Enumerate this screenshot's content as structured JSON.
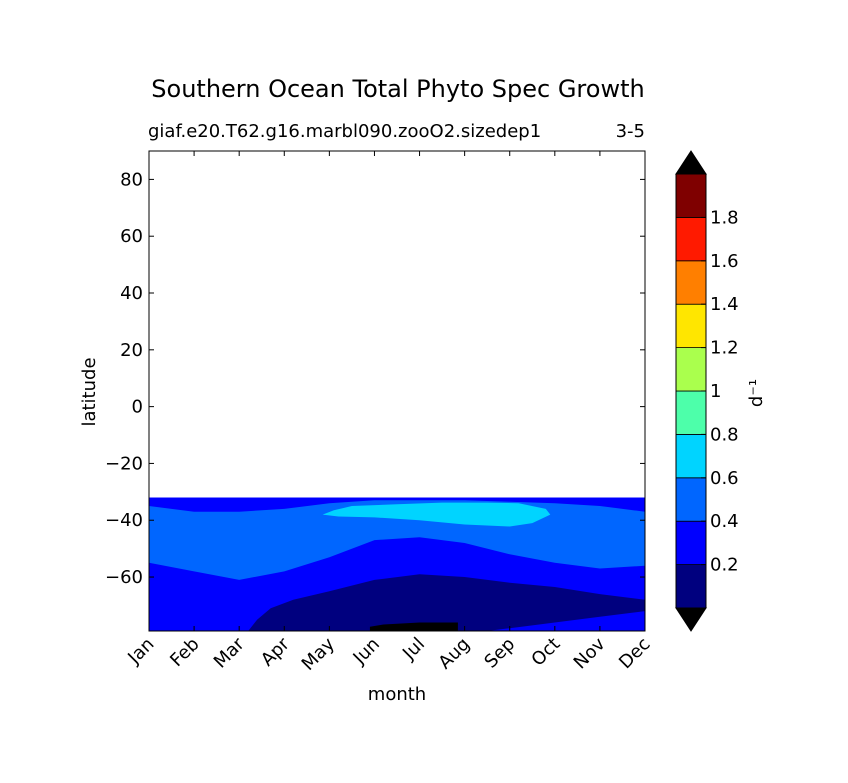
{
  "chart_data": {
    "type": "heatmap",
    "title": "Southern Ocean Total Phyto Spec Growth",
    "subtitle_left": "giaf.e20.T62.g16.marbl090.zooO2.sizedep1",
    "subtitle_right": "3-5",
    "xlabel": "month",
    "ylabel": "latitude",
    "x_categories": [
      "Jan",
      "Feb",
      "Mar",
      "Apr",
      "May",
      "Jun",
      "Jul",
      "Aug",
      "Sep",
      "Oct",
      "Nov",
      "Dec"
    ],
    "ylim": [
      -79,
      90
    ],
    "y_ticks": [
      80,
      60,
      40,
      20,
      0,
      -20,
      -40,
      -60
    ],
    "y_tick_labels": [
      "80",
      "60",
      "40",
      "20",
      "0",
      "−20",
      "−40",
      "−60"
    ],
    "data_lat_max": -32,
    "colorbar": {
      "label": "d⁻¹",
      "levels": [
        0,
        0.2,
        0.4,
        0.6,
        0.8,
        1.0,
        1.2,
        1.4,
        1.6,
        1.8,
        2.0
      ],
      "tick_values": [
        0.2,
        0.4,
        0.6,
        0.8,
        1.0,
        1.2,
        1.4,
        1.6,
        1.8
      ],
      "tick_labels": [
        "0.2",
        "0.4",
        "0.6",
        "0.8",
        "1",
        "1.2",
        "1.4",
        "1.6",
        "1.8"
      ],
      "colors": [
        "#00007f",
        "#0000ff",
        "#0066ff",
        "#00d4ff",
        "#4dffaa",
        "#aaff4d",
        "#ffe600",
        "#ff7f00",
        "#ff1a00",
        "#7f0000"
      ],
      "extend": "both",
      "extend_color": "#000000"
    },
    "contours": [
      {
        "level_range": "0.4-0.6",
        "color": "#0066ff",
        "boundary": [
          [
            0,
            -35
          ],
          [
            0.5,
            -36
          ],
          [
            1,
            -37
          ],
          [
            2,
            -37
          ],
          [
            3,
            -36
          ],
          [
            4,
            -34
          ],
          [
            5,
            -33
          ],
          [
            6,
            -33
          ],
          [
            7,
            -33
          ],
          [
            8,
            -33.5
          ],
          [
            9,
            -34
          ],
          [
            10,
            -35
          ],
          [
            11,
            -37
          ],
          [
            11,
            -56
          ],
          [
            10,
            -57
          ],
          [
            9,
            -55
          ],
          [
            8,
            -52
          ],
          [
            7,
            -48
          ],
          [
            6,
            -46
          ],
          [
            5,
            -47
          ],
          [
            4,
            -53
          ],
          [
            3,
            -58
          ],
          [
            2,
            -61
          ],
          [
            1,
            -58
          ],
          [
            0,
            -55
          ]
        ]
      },
      {
        "level_range": "0.6-0.8",
        "color": "#00d4ff",
        "boundary": [
          [
            3.85,
            -38
          ],
          [
            4.1,
            -36.5
          ],
          [
            4.5,
            -35
          ],
          [
            5.5,
            -34.4
          ],
          [
            6.5,
            -33.8
          ],
          [
            7.5,
            -33.8
          ],
          [
            8.2,
            -34
          ],
          [
            8.8,
            -36
          ],
          [
            8.9,
            -38
          ],
          [
            8.5,
            -41
          ],
          [
            8,
            -42.2
          ],
          [
            7,
            -41.5
          ],
          [
            6,
            -40
          ],
          [
            5,
            -39
          ],
          [
            4.2,
            -38.7
          ]
        ]
      },
      {
        "level_range": "0-0.2",
        "color": "#00007f",
        "boundary": [
          [
            2.2,
            -79
          ],
          [
            2.4,
            -75
          ],
          [
            2.7,
            -71
          ],
          [
            3.2,
            -68
          ],
          [
            4,
            -65
          ],
          [
            5,
            -61
          ],
          [
            6,
            -59
          ],
          [
            7,
            -60
          ],
          [
            8,
            -62
          ],
          [
            9,
            -63.5
          ],
          [
            10,
            -66
          ],
          [
            11,
            -68
          ],
          [
            11,
            -72
          ],
          [
            10,
            -74
          ],
          [
            9,
            -76
          ],
          [
            8,
            -78
          ],
          [
            7.5,
            -79
          ]
        ]
      },
      {
        "level_range": "extend-min",
        "color": "#000000",
        "boundary": [
          [
            4.9,
            -79
          ],
          [
            4.9,
            -77.5
          ],
          [
            5.2,
            -76.7
          ],
          [
            6,
            -76
          ],
          [
            6.85,
            -76
          ],
          [
            6.85,
            -79
          ]
        ]
      }
    ]
  }
}
